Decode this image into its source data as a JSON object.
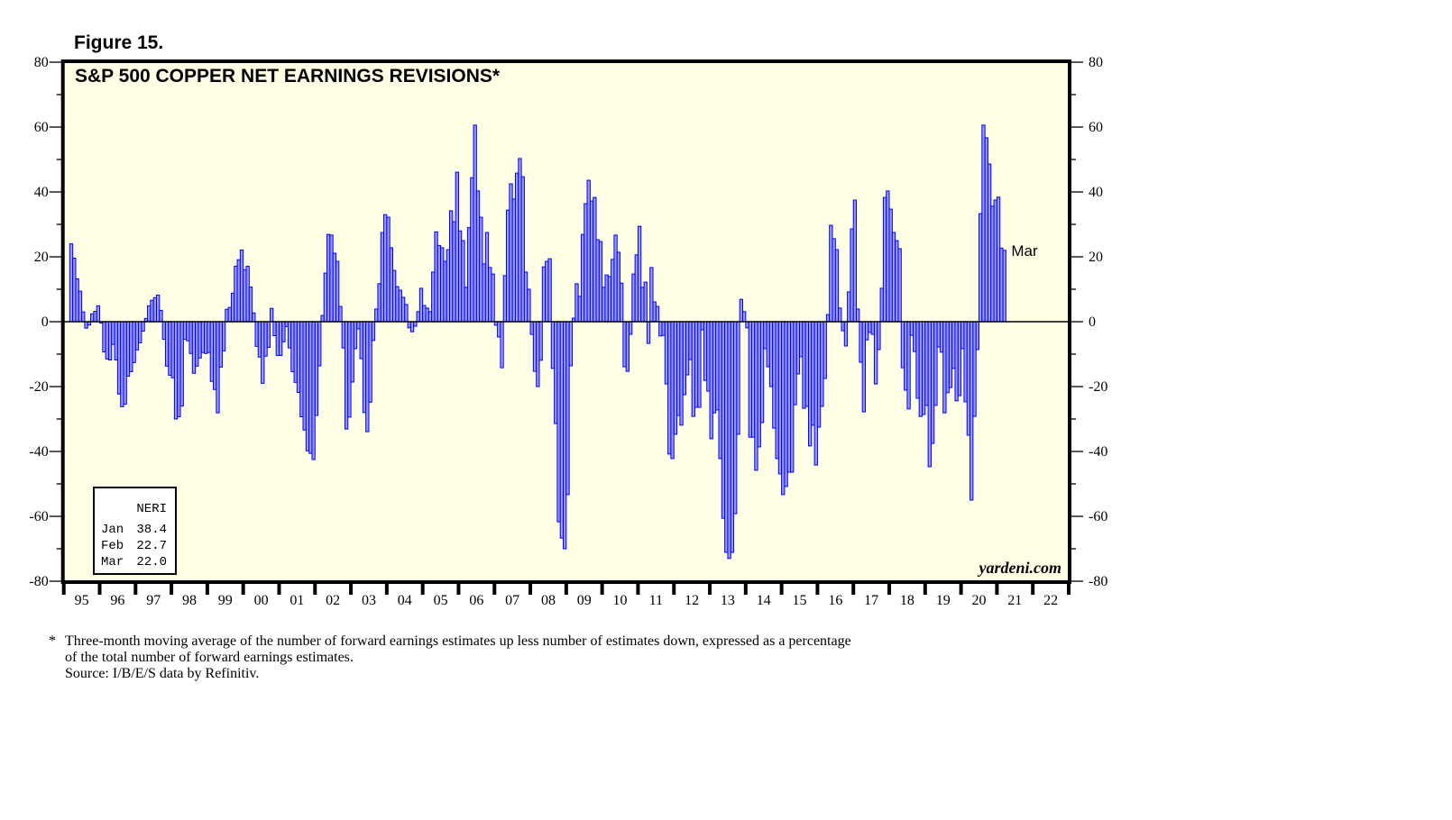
{
  "figure_label": "Figure 15.",
  "chart_data": {
    "type": "bar",
    "title": "S&P 500 COPPER NET EARNINGS REVISIONS*",
    "start_month": "1995-03",
    "frequency": "monthly",
    "ylim": [
      -80,
      80
    ],
    "yticks": [
      -80,
      -60,
      -40,
      -20,
      0,
      20,
      40,
      60,
      80
    ],
    "xtick_labels": [
      "95",
      "96",
      "97",
      "98",
      "99",
      "00",
      "01",
      "02",
      "03",
      "04",
      "05",
      "06",
      "07",
      "08",
      "09",
      "10",
      "11",
      "12",
      "13",
      "14",
      "15",
      "16",
      "17",
      "18",
      "19",
      "20",
      "21",
      "22"
    ],
    "x_range_years": [
      1995,
      2023
    ],
    "last_point_label": "Mar",
    "values": [
      24,
      19.6,
      13.2,
      9.4,
      3,
      -2,
      -1,
      2.4,
      3.2,
      4.9,
      -0.4,
      -9.3,
      -11.5,
      -11.8,
      -7,
      -11.8,
      -22.3,
      -26.2,
      -25.4,
      -16.8,
      -15.4,
      -12.6,
      -8.7,
      -6.5,
      -2.9,
      1,
      4.9,
      6.6,
      7.4,
      8.2,
      3.5,
      -5.4,
      -13.7,
      -16.5,
      -17.3,
      -30,
      -29.3,
      -26,
      -5.4,
      -5.9,
      -9.8,
      -15.9,
      -13.7,
      -11.2,
      -9.5,
      -9.8,
      -9.5,
      -18.4,
      -20.9,
      -28.1,
      -14,
      -9,
      3.8,
      4.4,
      8.8,
      17.1,
      19.1,
      22.1,
      16,
      17.1,
      10.7,
      2.7,
      -7.6,
      -10.9,
      -19,
      -10.6,
      -7.9,
      4.1,
      -4.3,
      -10.4,
      -10.4,
      -6.2,
      -1.5,
      -8.1,
      -15.4,
      -18.7,
      -21.8,
      -29.3,
      -33.4,
      -39.8,
      -40.6,
      -42.5,
      -28.9,
      -13.6,
      1.9,
      15,
      26.9,
      26.7,
      21.1,
      18.6,
      4.7,
      -8.1,
      -33.1,
      -29.4,
      -18.6,
      -8.3,
      -2.2,
      -11.4,
      -28,
      -33.9,
      -24.8,
      -5.8,
      3.9,
      11.7,
      27.5,
      33,
      32.2,
      22.8,
      15.8,
      10.8,
      9.7,
      7.5,
      5.3,
      -1.9,
      -3.1,
      -1.4,
      3.1,
      10.3,
      5,
      4.2,
      3.1,
      15.3,
      27.7,
      23.5,
      22.8,
      18.6,
      22.2,
      34.2,
      30.8,
      46.1,
      28,
      25,
      10.6,
      29,
      44.4,
      60.6,
      40.3,
      32.2,
      17.8,
      27.5,
      16.7,
      14.7,
      -1.1,
      -4.7,
      -14.2,
      14.2,
      34.4,
      42.5,
      37.8,
      45.8,
      50.3,
      44.7,
      15.3,
      10,
      -3.9,
      -15.3,
      -20,
      -11.9,
      16.9,
      18.6,
      19.4,
      -14.4,
      -31.4,
      -61.7,
      -66.7,
      -70,
      -53.3,
      -13.6,
      1.1,
      11.7,
      7.8,
      26.9,
      36.4,
      43.6,
      37.2,
      38.3,
      25.3,
      24.7,
      10.6,
      14.4,
      13.9,
      19.2,
      26.7,
      21.4,
      11.9,
      -13.9,
      -15.3,
      -3.9,
      14.7,
      20.6,
      29.4,
      10.6,
      12.2,
      -6.7,
      16.7,
      6.1,
      4.7,
      -4.4,
      -4.2,
      -19.2,
      -40.8,
      -42.2,
      -34.7,
      -28.9,
      -31.9,
      -22.5,
      -16.4,
      -11.7,
      -29.2,
      -26.4,
      -26.4,
      -2.5,
      -18.1,
      -21.4,
      -36.1,
      -28.1,
      -27.2,
      -42.2,
      -60.6,
      -71.1,
      -73,
      -71.1,
      -59.2,
      -34.7,
      6.9,
      3.1,
      -1.9,
      -35.6,
      -35.6,
      -45.8,
      -38.6,
      -31.1,
      -8.3,
      -13.9,
      -20,
      -32.8,
      -42.2,
      -46.9,
      -53.3,
      -50.8,
      -46.4,
      -46.4,
      -25.6,
      -16.1,
      -10.8,
      -26.7,
      -26.1,
      -38.3,
      -31.9,
      -44.2,
      -32.5,
      -26.1,
      -17.5,
      2.2,
      29.7,
      25.6,
      22.2,
      4.2,
      -2.8,
      -7.5,
      9.2,
      28.6,
      37.5,
      3.9,
      -12.5,
      -27.8,
      -5.6,
      -3.3,
      -3.9,
      -19.2,
      -8.6,
      10.3,
      38.3,
      40.3,
      34.7,
      27.5,
      25,
      22.5,
      -14.2,
      -21.1,
      -26.9,
      -4.2,
      -9.2,
      -23.6,
      -29.2,
      -28.6,
      -25.8,
      -44.7,
      -37.5,
      -25.8,
      -7.8,
      -9.4,
      -28.1,
      -21.9,
      -20.3,
      -14.4,
      -24.4,
      -22.8,
      -8.3,
      -24.7,
      -35,
      -55,
      -29.2,
      -8.6,
      33.3,
      60.6,
      56.7,
      48.6,
      35.6,
      37.5,
      38.4,
      22.7,
      22.0
    ],
    "legend": {
      "header": "NERI",
      "rows": [
        {
          "month": "Jan",
          "value": "38.4"
        },
        {
          "month": "Feb",
          "value": "22.7"
        },
        {
          "month": "Mar",
          "value": "22.0"
        }
      ],
      "placement": "bottom-left"
    },
    "watermark": "yardeni.com",
    "colors": {
      "bar_fill": "#9999ff",
      "bar_stroke": "#0000ff",
      "plot_bg": "#ffffe6",
      "frame": "#000000"
    }
  },
  "footnote": {
    "star": "*",
    "lines": [
      "Three-month moving average of the number of forward earnings estimates up less number of estimates down, expressed as a percentage",
      "of the total number of forward earnings estimates.",
      "Source: I/B/E/S data by Refinitiv."
    ]
  }
}
